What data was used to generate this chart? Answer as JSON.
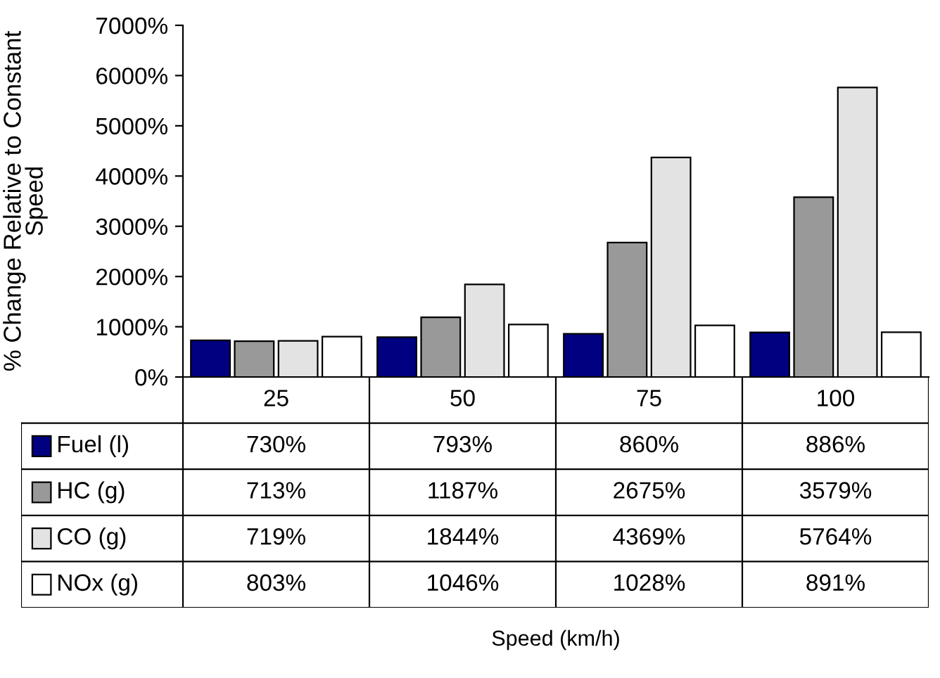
{
  "chart_data": {
    "type": "bar",
    "annotations": [
      "Speed (km/h)"
    ],
    "ylabel": "% Change Relative to Constant Speed",
    "categories": [
      "25",
      "50",
      "75",
      "100"
    ],
    "series": [
      {
        "name": "Fuel (l)",
        "color": "#000080",
        "values": [
          730,
          793,
          860,
          886
        ],
        "value_labels": [
          "730%",
          "793%",
          "860%",
          "886%"
        ]
      },
      {
        "name": "HC (g)",
        "color": "#999999",
        "values": [
          713,
          1187,
          2675,
          3579
        ],
        "value_labels": [
          "713%",
          "1187%",
          "2675%",
          "3579%"
        ]
      },
      {
        "name": "CO (g)",
        "color": "#e3e3e3",
        "values": [
          719,
          1844,
          4369,
          5764
        ],
        "value_labels": [
          "719%",
          "1844%",
          "4369%",
          "5764%"
        ]
      },
      {
        "name": "NOx (g)",
        "color": "#ffffff",
        "values": [
          803,
          1046,
          1028,
          891
        ],
        "value_labels": [
          "803%",
          "1046%",
          "1028%",
          "891%"
        ]
      }
    ],
    "ylim": [
      0,
      7000
    ],
    "yticks": [
      {
        "value": 0,
        "label": "0%"
      },
      {
        "value": 1000,
        "label": "1000%"
      },
      {
        "value": 2000,
        "label": "2000%"
      },
      {
        "value": 3000,
        "label": "3000%"
      },
      {
        "value": 4000,
        "label": "4000%"
      },
      {
        "value": 5000,
        "label": "5000%"
      },
      {
        "value": 6000,
        "label": "6000%"
      },
      {
        "value": 7000,
        "label": "7000%"
      }
    ],
    "grid": false,
    "legend": "bottom left"
  }
}
